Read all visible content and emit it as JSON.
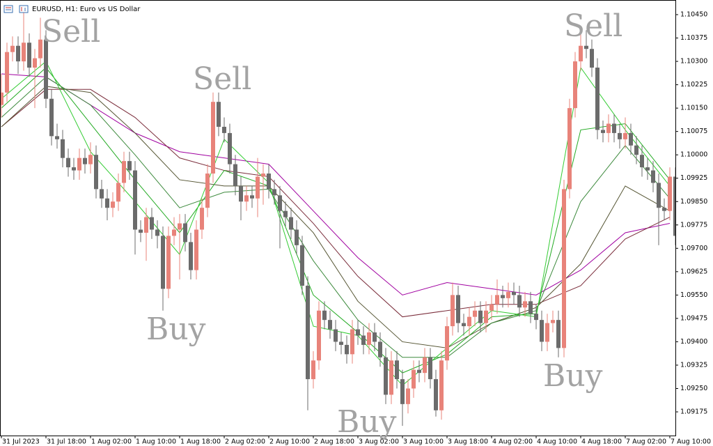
{
  "header": "EURUSD, H1:  Euro vs US Dollar",
  "chart_data": {
    "type": "candlestick",
    "up_color": "#e8837a",
    "down_color": "#6b6b6b",
    "ylim": [
      1.09099,
      1.10497
    ],
    "yticks": [
      {
        "value": 1.1045,
        "label": "1.10450"
      },
      {
        "value": 1.10375,
        "label": "1.10375"
      },
      {
        "value": 1.103,
        "label": "1.10300"
      },
      {
        "value": 1.10225,
        "label": "1.10225"
      },
      {
        "value": 1.1015,
        "label": "1.10150"
      },
      {
        "value": 1.10075,
        "label": "1.10075"
      },
      {
        "value": 1.1,
        "label": "1.10000"
      },
      {
        "value": 1.09925,
        "label": "1.09925"
      },
      {
        "value": 1.0985,
        "label": "1.09850"
      },
      {
        "value": 1.09775,
        "label": "1.09775"
      },
      {
        "value": 1.097,
        "label": "1.09700"
      },
      {
        "value": 1.09625,
        "label": "1.09625"
      },
      {
        "value": 1.0955,
        "label": "1.09550"
      },
      {
        "value": 1.09475,
        "label": "1.09475"
      },
      {
        "value": 1.094,
        "label": "1.09400"
      },
      {
        "value": 1.09325,
        "label": "1.09325"
      },
      {
        "value": 1.0925,
        "label": "1.09250"
      },
      {
        "value": 1.09175,
        "label": "1.09175"
      }
    ],
    "xlim": [
      -0.25,
      121
    ],
    "xticks": [
      {
        "value": 0,
        "label": "31 Jul 2023"
      },
      {
        "value": 8,
        "label": "31 Jul 18:00"
      },
      {
        "value": 16,
        "label": "1 Aug 02:00"
      },
      {
        "value": 24,
        "label": "1 Aug 10:00"
      },
      {
        "value": 32,
        "label": "1 Aug 18:00"
      },
      {
        "value": 40,
        "label": "2 Aug 02:00"
      },
      {
        "value": 48,
        "label": "2 Aug 10:00"
      },
      {
        "value": 56,
        "label": "2 Aug 18:00"
      },
      {
        "value": 64,
        "label": "3 Aug 02:00"
      },
      {
        "value": 72,
        "label": "3 Aug 10:00"
      },
      {
        "value": 80,
        "label": "3 Aug 18:00"
      },
      {
        "value": 88,
        "label": "4 Aug 02:00"
      },
      {
        "value": 96,
        "label": "4 Aug 10:00"
      },
      {
        "value": 104,
        "label": "4 Aug 18:00"
      },
      {
        "value": 112,
        "label": "7 Aug 02:00"
      },
      {
        "value": 120,
        "label": "7 Aug 10:00"
      }
    ],
    "candles": [
      [
        1.1016,
        1.1026,
        1.1012,
        1.102
      ],
      [
        1.102,
        1.1036,
        1.1017,
        1.1033
      ],
      [
        1.1033,
        1.1038,
        1.103,
        1.1035
      ],
      [
        1.1035,
        1.1038,
        1.1026,
        1.103
      ],
      [
        1.103,
        1.1046,
        1.1027,
        1.1036
      ],
      [
        1.1036,
        1.1039,
        1.1025,
        1.1028
      ],
      [
        1.1028,
        1.1034,
        1.1015,
        1.1031
      ],
      [
        1.1031,
        1.1044,
        1.1028,
        1.1037
      ],
      [
        1.1037,
        1.104,
        1.1015,
        1.1018
      ],
      [
        1.1018,
        1.1021,
        1.1003,
        1.1006
      ],
      [
        1.1006,
        1.101,
        1.1002,
        1.1005
      ],
      [
        1.1005,
        1.1008,
        1.0996,
        1.0999
      ],
      [
        1.0999,
        1.1002,
        1.0993,
        1.0996
      ],
      [
        1.0996,
        1.0999,
        1.0992,
        1.0995
      ],
      [
        1.0995,
        1.1002,
        1.0992,
        1.0999
      ],
      [
        1.0999,
        1.1002,
        1.0994,
        1.0997
      ],
      [
        1.0997,
        1.1004,
        1.0994,
        1.1
      ],
      [
        1.1,
        1.1003,
        1.0986,
        1.0989
      ],
      [
        1.0989,
        1.0992,
        1.0983,
        1.0986
      ],
      [
        1.0986,
        1.0989,
        1.0979,
        1.0983
      ],
      [
        1.0983,
        1.0988,
        1.098,
        1.0985
      ],
      [
        1.0985,
        1.0994,
        1.0982,
        1.0991
      ],
      [
        1.0991,
        1.1001,
        1.0988,
        1.0998
      ],
      [
        1.0998,
        1.1001,
        1.0992,
        1.0995
      ],
      [
        1.0995,
        1.0998,
        1.0968,
        1.0976
      ],
      [
        1.0976,
        1.0979,
        1.0972,
        1.0975
      ],
      [
        1.0975,
        1.0983,
        1.0966,
        1.098
      ],
      [
        1.098,
        1.0983,
        1.0973,
        1.0976
      ],
      [
        1.0976,
        1.0979,
        1.097,
        1.0974
      ],
      [
        1.0974,
        1.0977,
        1.095,
        1.0957
      ],
      [
        1.0957,
        1.0977,
        1.0954,
        1.0974
      ],
      [
        1.0974,
        1.098,
        1.0971,
        1.0976
      ],
      [
        1.0976,
        1.0981,
        1.096,
        1.0978
      ],
      [
        1.0978,
        1.0981,
        1.0969,
        1.0972
      ],
      [
        1.0972,
        1.0975,
        1.096,
        1.0963
      ],
      [
        1.0963,
        1.0979,
        1.096,
        1.0976
      ],
      [
        1.0976,
        1.0986,
        1.0973,
        1.0983
      ],
      [
        1.0983,
        1.0997,
        1.098,
        1.0994
      ],
      [
        1.0994,
        1.102,
        1.0991,
        1.1017
      ],
      [
        1.1017,
        1.102,
        1.1006,
        1.1009
      ],
      [
        1.1009,
        1.1012,
        1.1004,
        1.1007
      ],
      [
        1.1007,
        1.101,
        1.0994,
        1.0997
      ],
      [
        1.0997,
        1.1,
        1.0987,
        1.099
      ],
      [
        1.099,
        1.0993,
        1.0979,
        1.0985
      ],
      [
        1.0985,
        1.099,
        1.0982,
        1.0987
      ],
      [
        1.0987,
        1.099,
        1.0983,
        1.0986
      ],
      [
        1.0986,
        1.0999,
        1.098,
        1.0993
      ],
      [
        1.0993,
        1.0997,
        1.0984,
        1.0994
      ],
      [
        1.0994,
        1.0997,
        1.0986,
        1.0989
      ],
      [
        1.0989,
        1.0992,
        1.0984,
        1.0987
      ],
      [
        1.0987,
        1.099,
        1.097,
        1.0982
      ],
      [
        1.0982,
        1.0985,
        1.0977,
        1.098
      ],
      [
        1.098,
        1.0983,
        1.0973,
        1.0976
      ],
      [
        1.0976,
        1.0979,
        1.0968,
        1.0971
      ],
      [
        1.0971,
        1.0974,
        1.0955,
        1.0958
      ],
      [
        1.0958,
        1.0961,
        1.0918,
        1.0928
      ],
      [
        1.0928,
        1.0937,
        1.0925,
        1.0934
      ],
      [
        1.0934,
        1.0953,
        1.0931,
        1.095
      ],
      [
        1.095,
        1.0953,
        1.0944,
        1.0947
      ],
      [
        1.0947,
        1.095,
        1.0941,
        1.0944
      ],
      [
        1.0944,
        1.0947,
        1.0937,
        1.094
      ],
      [
        1.094,
        1.0943,
        1.0936,
        1.0939
      ],
      [
        1.0939,
        1.0942,
        1.0933,
        1.0936
      ],
      [
        1.0936,
        1.0947,
        1.0933,
        1.0944
      ],
      [
        1.0944,
        1.0947,
        1.0939,
        1.0942
      ],
      [
        1.0942,
        1.0945,
        1.0936,
        1.0939
      ],
      [
        1.0939,
        1.0946,
        1.0936,
        1.0943
      ],
      [
        1.0943,
        1.0946,
        1.0937,
        1.094
      ],
      [
        1.094,
        1.0943,
        1.0932,
        1.0935
      ],
      [
        1.0935,
        1.0938,
        1.092,
        1.0923
      ],
      [
        1.0923,
        1.0937,
        1.092,
        1.0934
      ],
      [
        1.0934,
        1.0937,
        1.0925,
        1.0928
      ],
      [
        1.0928,
        1.0931,
        1.0913,
        1.092
      ],
      [
        1.092,
        1.0928,
        1.0917,
        1.0925
      ],
      [
        1.0925,
        1.0934,
        1.0922,
        1.0931
      ],
      [
        1.0931,
        1.0934,
        1.0927,
        1.093
      ],
      [
        1.093,
        1.0938,
        1.0927,
        1.0935
      ],
      [
        1.0935,
        1.0938,
        1.0925,
        1.0928
      ],
      [
        1.0928,
        1.0931,
        1.0916,
        1.0918
      ],
      [
        1.0918,
        1.0937,
        1.0915,
        1.0934
      ],
      [
        1.0934,
        1.0948,
        1.0931,
        1.0945
      ],
      [
        1.0945,
        1.0959,
        1.0942,
        1.0955
      ],
      [
        1.0955,
        1.0958,
        1.0943,
        1.0946
      ],
      [
        1.0946,
        1.0949,
        1.0942,
        1.0945
      ],
      [
        1.0945,
        1.0951,
        1.0942,
        1.0948
      ],
      [
        1.0948,
        1.0953,
        1.0945,
        1.095
      ],
      [
        1.095,
        1.0953,
        1.0943,
        1.0946
      ],
      [
        1.0946,
        1.0953,
        1.0943,
        1.095
      ],
      [
        1.095,
        1.0955,
        1.0947,
        1.0952
      ],
      [
        1.0952,
        1.096,
        1.0949,
        1.0955
      ],
      [
        1.0955,
        1.0958,
        1.0951,
        1.0954
      ],
      [
        1.0954,
        1.0959,
        1.0951,
        1.0956
      ],
      [
        1.0956,
        1.0959,
        1.0952,
        1.0955
      ],
      [
        1.0955,
        1.0958,
        1.0948,
        1.0951
      ],
      [
        1.0951,
        1.0956,
        1.0948,
        1.0953
      ],
      [
        1.0953,
        1.0956,
        1.0946,
        1.0949
      ],
      [
        1.0949,
        1.0952,
        1.0944,
        1.0947
      ],
      [
        1.0947,
        1.095,
        1.0937,
        1.094
      ],
      [
        1.094,
        1.0949,
        1.0937,
        1.0946
      ],
      [
        1.0946,
        1.095,
        1.0943,
        1.0947
      ],
      [
        1.0947,
        1.095,
        1.0935,
        1.0938
      ],
      [
        1.0938,
        1.0992,
        1.0935,
        1.0989
      ],
      [
        1.0989,
        1.1018,
        1.0986,
        1.1015
      ],
      [
        1.1015,
        1.1033,
        1.1012,
        1.103
      ],
      [
        1.103,
        1.104,
        1.1027,
        1.1035
      ],
      [
        1.1035,
        1.104,
        1.1031,
        1.1034
      ],
      [
        1.1034,
        1.1037,
        1.1025,
        1.1028
      ],
      [
        1.1028,
        1.1031,
        1.1005,
        1.1008
      ],
      [
        1.1008,
        1.1011,
        1.1004,
        1.1007
      ],
      [
        1.1007,
        1.1013,
        1.1004,
        1.101
      ],
      [
        1.101,
        1.1013,
        1.1004,
        1.1007
      ],
      [
        1.1007,
        1.101,
        1.1002,
        1.1005
      ],
      [
        1.1005,
        1.1012,
        1.1002,
        1.1007
      ],
      [
        1.1007,
        1.101,
        1.1,
        1.1003
      ],
      [
        1.1003,
        1.1006,
        1.0997,
        1.1
      ],
      [
        1.1,
        1.1003,
        1.0993,
        1.0996
      ],
      [
        1.0996,
        1.0999,
        1.0992,
        1.0995
      ],
      [
        1.0995,
        1.0998,
        1.0988,
        1.0991
      ],
      [
        1.0991,
        1.0994,
        1.0971,
        1.0983
      ],
      [
        1.0983,
        1.0986,
        1.0979,
        1.0982
      ],
      [
        1.0982,
        1.0996,
        1.0979,
        1.0993
      ],
      [
        1.0993,
        1.0996,
        1.0971,
        1.0974
      ]
    ],
    "lines": {
      "x": [
        0,
        8,
        16,
        24,
        32,
        40,
        48,
        56,
        64,
        72,
        80,
        88,
        96,
        104,
        112,
        120
      ],
      "series": [
        {
          "color": "#a000a0",
          "values": [
            1.1026,
            1.1025,
            1.1016,
            1.1007,
            1.1001,
            1.0999,
            1.0997,
            1.0982,
            1.0967,
            1.0955,
            1.0959,
            1.0957,
            1.0955,
            1.0963,
            1.0975,
            1.0978
          ]
        },
        {
          "color": "#7a2c3a",
          "values": [
            1.1009,
            1.1021,
            1.1021,
            1.1012,
            1.0999,
            1.0995,
            1.0993,
            1.0978,
            1.0961,
            1.0948,
            1.095,
            1.0952,
            1.0952,
            1.0958,
            1.0973,
            1.098
          ]
        },
        {
          "color": "#555533",
          "values": [
            1.1009,
            1.1022,
            1.102,
            1.1007,
            1.0992,
            1.099,
            1.099,
            1.0975,
            1.0953,
            1.094,
            1.0938,
            1.0946,
            1.0951,
            1.0965,
            1.099,
            1.0982
          ]
        },
        {
          "color": "#3d8a3d",
          "values": [
            1.1012,
            1.1025,
            1.1016,
            1.1,
            1.0983,
            1.0988,
            1.0989,
            1.0966,
            1.0947,
            1.0935,
            1.0935,
            1.0946,
            1.095,
            1.0985,
            1.1003,
            1.0986
          ]
        },
        {
          "color": "#22aa22",
          "values": [
            1.1015,
            1.1028,
            1.101,
            1.0992,
            1.0975,
            1.0995,
            1.099,
            1.0955,
            1.0943,
            1.093,
            1.0936,
            1.0948,
            1.0949,
            1.1008,
            1.101,
            1.0992
          ]
        },
        {
          "color": "#33cc33",
          "values": [
            1.1018,
            1.103,
            1.1001,
            1.0985,
            1.0968,
            1.1005,
            1.0991,
            1.0945,
            1.0942,
            1.0926,
            1.0938,
            1.095,
            1.0948,
            1.1028,
            1.1008,
            1.099
          ]
        }
      ]
    },
    "annotations": [
      "Sell",
      "Sell",
      "Sell",
      "Buy",
      "Buy",
      "Buy"
    ]
  }
}
